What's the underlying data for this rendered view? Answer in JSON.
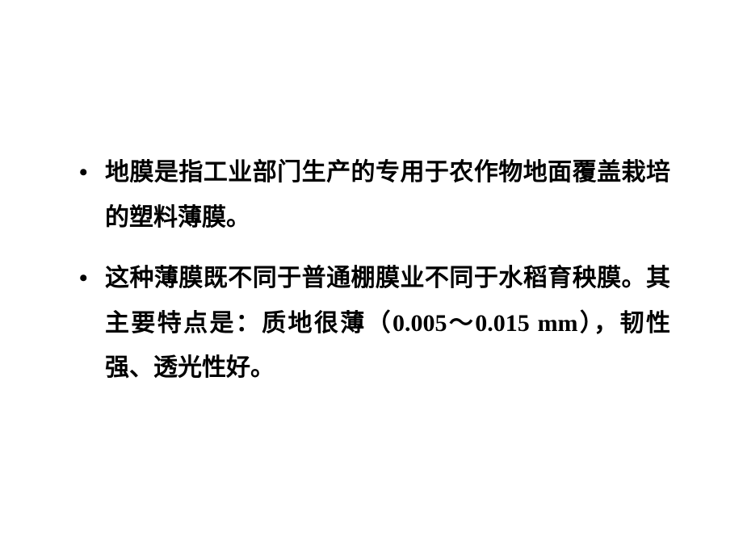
{
  "slide": {
    "bullets": [
      {
        "text": "地膜是指工业部门生产的专用于农作物地面覆盖栽培的塑料薄膜。"
      },
      {
        "text": "这种薄膜既不同于普通棚膜业不同于水稻育秧膜。其主要特点是：质地很薄（0.005～0.015 mm），韧性强、透光性好。"
      }
    ]
  },
  "colors": {
    "background": "#ffffff",
    "text": "#000000"
  },
  "typography": {
    "fontSize": 30,
    "fontWeight": "bold",
    "lineHeight": 1.85,
    "fontFamily": "SimSun"
  }
}
